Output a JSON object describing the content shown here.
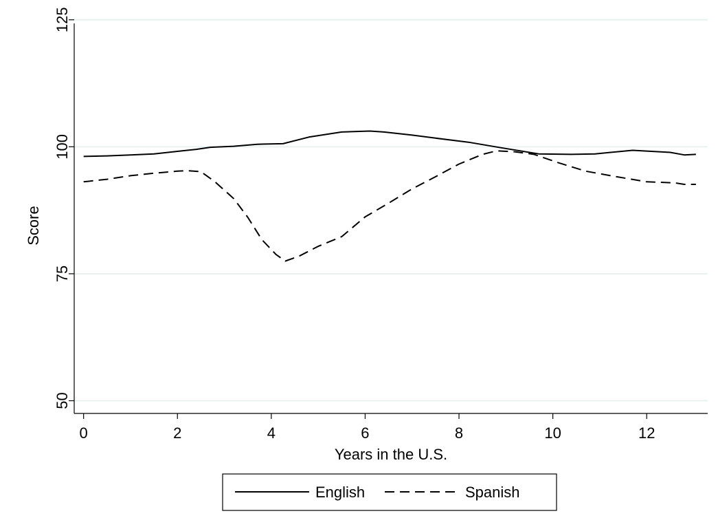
{
  "chart_data": {
    "type": "line",
    "xlabel": "Years in the U.S.",
    "ylabel": "Score",
    "xlim": [
      -0.2,
      13.3
    ],
    "ylim": [
      47.5,
      127
    ],
    "xticks": [
      0,
      2,
      4,
      6,
      8,
      10,
      12
    ],
    "yticks": [
      50,
      75,
      100,
      125
    ],
    "grid": "horizontal",
    "legend_position": "bottom",
    "series": [
      {
        "name": "English",
        "style": "solid",
        "color": "#000000",
        "points": [
          [
            0,
            98.1
          ],
          [
            0.5,
            98.2
          ],
          [
            1,
            98.4
          ],
          [
            1.5,
            98.6
          ],
          [
            2,
            99.1
          ],
          [
            2.4,
            99.5
          ],
          [
            2.7,
            99.9
          ],
          [
            3.2,
            100.1
          ],
          [
            3.7,
            100.5
          ],
          [
            4.25,
            100.6
          ],
          [
            4.8,
            101.9
          ],
          [
            5.5,
            102.9
          ],
          [
            6.1,
            103.1
          ],
          [
            6.4,
            102.9
          ],
          [
            7,
            102.3
          ],
          [
            7.5,
            101.7
          ],
          [
            8.2,
            100.9
          ],
          [
            8.9,
            99.8
          ],
          [
            9.7,
            98.6
          ],
          [
            10.4,
            98.5
          ],
          [
            10.9,
            98.6
          ],
          [
            11.7,
            99.3
          ],
          [
            12.5,
            98.9
          ],
          [
            12.8,
            98.4
          ],
          [
            13.05,
            98.5
          ]
        ]
      },
      {
        "name": "Spanish",
        "style": "dashed",
        "color": "#000000",
        "points": [
          [
            0,
            93.1
          ],
          [
            0.5,
            93.6
          ],
          [
            1,
            94.3
          ],
          [
            1.5,
            94.8
          ],
          [
            2,
            95.2
          ],
          [
            2.2,
            95.3
          ],
          [
            2.5,
            95.1
          ],
          [
            2.8,
            93.1
          ],
          [
            3.2,
            89.8
          ],
          [
            3.5,
            86.1
          ],
          [
            3.8,
            81.7
          ],
          [
            4.1,
            78.8
          ],
          [
            4.3,
            77.5
          ],
          [
            4.6,
            78.5
          ],
          [
            5,
            80.4
          ],
          [
            5.5,
            82.3
          ],
          [
            6,
            86.2
          ],
          [
            6.5,
            88.9
          ],
          [
            7,
            91.7
          ],
          [
            7.5,
            94.1
          ],
          [
            8,
            96.6
          ],
          [
            8.5,
            98.5
          ],
          [
            8.8,
            99.2
          ],
          [
            9.2,
            99.0
          ],
          [
            9.6,
            98.5
          ],
          [
            10.1,
            96.9
          ],
          [
            10.7,
            95.2
          ],
          [
            11.3,
            94.2
          ],
          [
            12,
            93.1
          ],
          [
            12.6,
            92.9
          ],
          [
            12.8,
            92.6
          ],
          [
            13.05,
            92.6
          ]
        ]
      }
    ]
  }
}
